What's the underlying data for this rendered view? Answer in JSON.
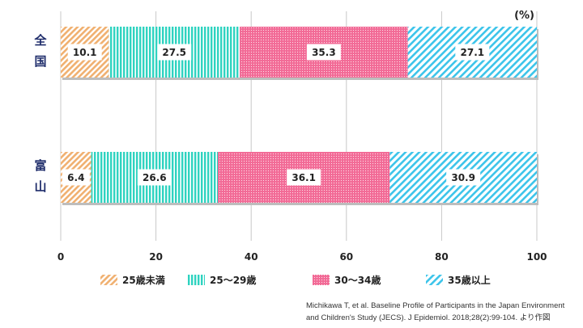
{
  "chart_data": {
    "type": "bar",
    "orientation": "horizontal",
    "stacked": true,
    "unit_label": "(%)",
    "categories": [
      "全国",
      "富山"
    ],
    "series": [
      {
        "name": "25歳未満",
        "values": [
          10.1,
          6.4
        ],
        "color": "#f0b070",
        "pattern": "diagonal-hatch"
      },
      {
        "name": "25〜29歳",
        "values": [
          27.5,
          26.6
        ],
        "color": "#2fd3c0",
        "pattern": "vertical-stripes"
      },
      {
        "name": "30〜34歳",
        "values": [
          35.3,
          36.1
        ],
        "color": "#f26a96",
        "pattern": "dots"
      },
      {
        "name": "35歳以上",
        "values": [
          27.1,
          30.9
        ],
        "color": "#3cc4ea",
        "pattern": "diagonal-hatch"
      }
    ],
    "xlim": [
      0,
      100
    ],
    "xticks": [
      "0",
      "20",
      "40",
      "60",
      "80",
      "100"
    ],
    "grid": "vertical",
    "legend_position": "bottom"
  },
  "source_lines": [
    "Michikawa T, et al. Baseline Profile of Participants in the Japan Environment",
    "and Children's Study (JECS). J Epidemiol. 2018;28(2):99-104. より作図"
  ]
}
